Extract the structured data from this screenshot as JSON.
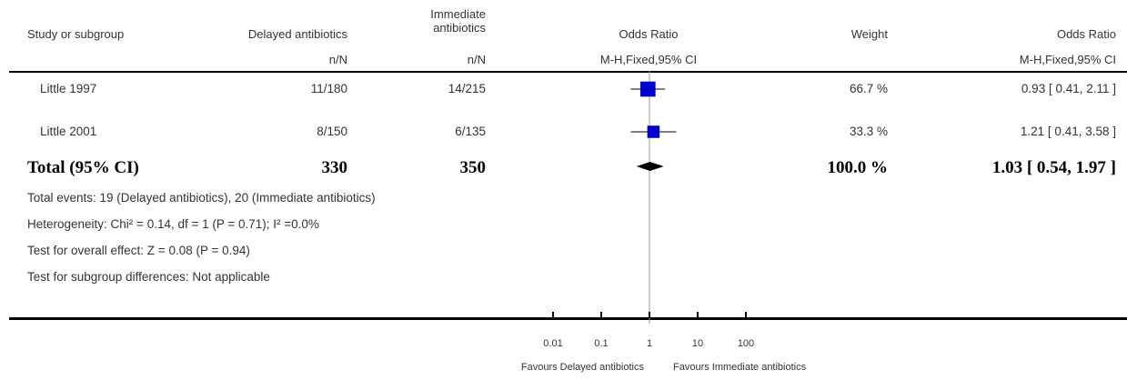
{
  "header": {
    "study": "Study or subgroup",
    "group1": "Delayed antibiotics",
    "group2_line1": "Immediate",
    "group2_line2": "antibiotics",
    "effect": "Odds Ratio",
    "weight": "Weight",
    "effect2": "Odds Ratio",
    "unit1": "n/N",
    "unit2": "n/N",
    "method": "M-H,Fixed,95% CI",
    "method2": "M-H,Fixed,95% CI"
  },
  "chart_data": {
    "type": "forest",
    "scale": "log",
    "xlim": [
      0.01,
      100
    ],
    "x_ticks": [
      "0.01",
      "0.1",
      "1",
      "10",
      "100"
    ],
    "xlabel_left": "Favours Delayed antibiotics",
    "xlabel_right": "Favours Immediate antibiotics",
    "studies": [
      {
        "name": "Little 1997",
        "g1": "11/180",
        "g2": "14/215",
        "or": 0.93,
        "lo": 0.41,
        "hi": 2.11,
        "weight": 66.7,
        "weight_text": "66.7 %",
        "ci_text": "0.93 [ 0.41, 2.11 ]"
      },
      {
        "name": "Little 2001",
        "g1": "8/150",
        "g2": "6/135",
        "or": 1.21,
        "lo": 0.41,
        "hi": 3.58,
        "weight": 33.3,
        "weight_text": "33.3 %",
        "ci_text": "1.21 [ 0.41, 3.58 ]"
      }
    ],
    "total": {
      "name": "Total (95% CI)",
      "g1": "330",
      "g2": "350",
      "or": 1.03,
      "lo": 0.54,
      "hi": 1.97,
      "weight_text": "100.0 %",
      "ci_text": "1.03 [ 0.54, 1.97 ]"
    },
    "marker_color": "#0000cc"
  },
  "footnotes": {
    "events": "Total events: 19 (Delayed antibiotics), 20 (Immediate antibiotics)",
    "heterogeneity": "Heterogeneity: Chi² = 0.14, df = 1 (P = 0.71); I² =0.0%",
    "overall": "Test for overall effect: Z = 0.08 (P = 0.94)",
    "subgroup": "Test for subgroup differences: Not applicable"
  }
}
